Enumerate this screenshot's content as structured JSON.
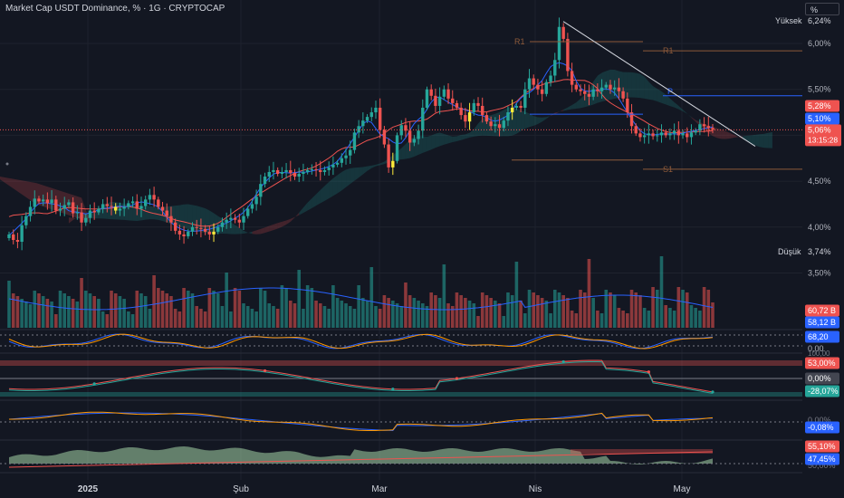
{
  "header": {
    "title": "Market Cap USDT Dominance, % · 1G · CRYPTOCAP",
    "unit": "%"
  },
  "colors": {
    "up": "#26a69a",
    "down": "#ef5350",
    "background": "#131722",
    "grid": "#1e222d",
    "axis_text": "#b2b5be",
    "kijun": "#ef5350",
    "tenkan": "#2962ff",
    "trendline": "#d1d4dc",
    "pivot_level": "#8d5a3a",
    "pivot_p": "#2962ff",
    "current_price": "#ef5350",
    "volume_ma": "#2962ff"
  },
  "axis": {
    "y_labels": [
      "6,00%",
      "5,50%",
      "5,00%",
      "4,50%",
      "4,00%",
      "3,50%"
    ],
    "x_labels": [
      "2025",
      "Şub",
      "Mar",
      "Nis",
      "May"
    ]
  },
  "price_badges": {
    "high_label": "Yüksek",
    "high_value": "6,24%",
    "low_label": "Düşük",
    "low_value": "3,74%",
    "badge_528": "5,28%",
    "badge_510": "5,10%",
    "current_value": "5,06%",
    "countdown": "13:15:28"
  },
  "pivots": {
    "r1": "R1",
    "p": "P",
    "s1": "S1"
  },
  "volume_badges": {
    "v1": "60,72 B",
    "v2": "58,12 B"
  },
  "indicator_badges": {
    "stoch_top": "68,20",
    "stoch_bottom": "0,00",
    "osc_hidden": "100,00",
    "osc_top": "53,00%",
    "osc_zero": "0,00%",
    "osc_bottom": "-28,07%",
    "macd_zero": "0,00%",
    "macd_value": "-0,08%",
    "last_hidden": "50,00%",
    "last_top": "55,10%",
    "last_bottom": "47,45%"
  },
  "chart_data": {
    "type": "candlestick",
    "instrument": "Market Cap USDT Dominance, %",
    "timeframe": "1G",
    "x_labels": [
      "2025",
      "Şub",
      "Mar",
      "Nis",
      "May"
    ],
    "y_axis_labels": [
      6.0,
      5.5,
      5.0,
      4.5,
      4.0,
      3.5
    ],
    "high": 6.24,
    "low": 3.74,
    "current": 5.06,
    "close_series": [
      3.92,
      3.86,
      3.84,
      4.02,
      4.12,
      4.22,
      4.31,
      4.28,
      4.3,
      4.26,
      4.3,
      4.18,
      4.2,
      4.24,
      4.27,
      4.15,
      4.16,
      4.05,
      4.1,
      4.18,
      4.16,
      4.2,
      4.25,
      4.23,
      4.22,
      4.18,
      4.2,
      4.22,
      4.26,
      4.28,
      4.2,
      4.23,
      4.3,
      4.35,
      4.3,
      4.22,
      4.18,
      4.12,
      4.05,
      3.96,
      3.92,
      3.9,
      3.95,
      4.0,
      3.99,
      3.98,
      3.95,
      3.92,
      3.95,
      4.0,
      4.05,
      4.08,
      4.1,
      4.08,
      4.05,
      4.12,
      4.2,
      4.25,
      4.33,
      4.47,
      4.55,
      4.6,
      4.62,
      4.58,
      4.6,
      4.62,
      4.59,
      4.55,
      4.58,
      4.6,
      4.62,
      4.63,
      4.62,
      4.6,
      4.62,
      4.65,
      4.68,
      4.7,
      4.75,
      4.78,
      4.84,
      5.03,
      5.1,
      5.16,
      5.2,
      5.25,
      5.3,
      5.06,
      4.9,
      4.65,
      4.72,
      5.0,
      5.11,
      5.05,
      4.92,
      4.96,
      5.05,
      5.3,
      5.5,
      5.43,
      5.32,
      5.42,
      5.5,
      5.4,
      5.35,
      5.3,
      5.22,
      5.15,
      5.25,
      5.35,
      5.32,
      5.22,
      5.15,
      5.1,
      5.12,
      5.08,
      5.16,
      5.25,
      5.3,
      5.32,
      5.3,
      5.5,
      5.62,
      5.55,
      5.5,
      5.45,
      5.58,
      5.65,
      5.82,
      6.18,
      6.05,
      5.7,
      5.55,
      5.5,
      5.48,
      5.45,
      5.42,
      5.5,
      5.48,
      5.52,
      5.55,
      5.5,
      5.52,
      5.48,
      5.4,
      5.25,
      5.1,
      5.02,
      4.98,
      5.0,
      5.02,
      4.99,
      5.0,
      5.03,
      5.0,
      5.02,
      5.05,
      5.0,
      5.02,
      4.98,
      5.03,
      5.05,
      5.12,
      5.1,
      5.08,
      5.06
    ],
    "pivot_levels": {
      "R1": 6.02,
      "P": 5.43,
      "S1": 4.63
    },
    "trendline": {
      "from": 6.24,
      "to": 4.92
    },
    "volume_values": [
      "60,72 B",
      "58,12 B"
    ],
    "indicators": [
      {
        "name": "stochastic",
        "values": [
          "68,20",
          "0,00"
        ]
      },
      {
        "name": "oscillator",
        "values": [
          "53,00%",
          "0,00%",
          "-28,07%"
        ]
      },
      {
        "name": "macd",
        "values": [
          "0,00%",
          "-0,08%"
        ]
      },
      {
        "name": "dominance_band",
        "values": [
          "55,10%",
          "47,45%"
        ]
      }
    ]
  }
}
